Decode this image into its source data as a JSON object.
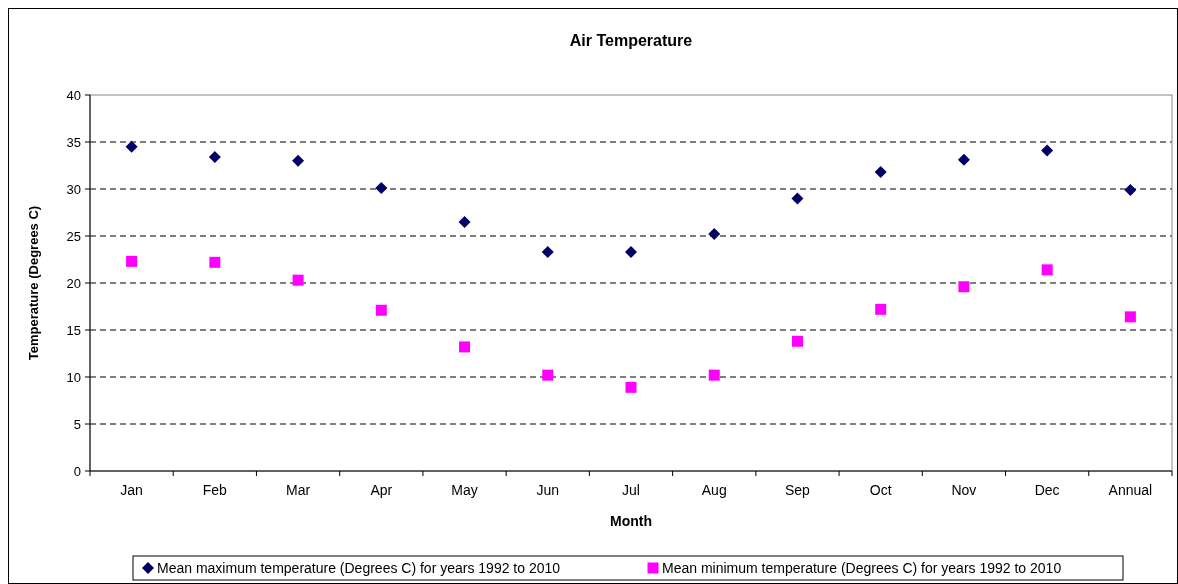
{
  "chart_data": {
    "type": "scatter",
    "title": "Air Temperature",
    "xlabel": "Month",
    "ylabel": "Temperature (Degrees C)",
    "categories": [
      "Jan",
      "Feb",
      "Mar",
      "Apr",
      "May",
      "Jun",
      "Jul",
      "Aug",
      "Sep",
      "Oct",
      "Nov",
      "Dec",
      "Annual"
    ],
    "series": [
      {
        "name": "Mean maximum temperature (Degrees C) for years 1992 to 2010",
        "color": "#000066",
        "marker": "diamond",
        "values": [
          34.5,
          33.4,
          33.0,
          30.1,
          26.5,
          23.3,
          23.3,
          25.2,
          29.0,
          31.8,
          33.1,
          34.1,
          29.9
        ]
      },
      {
        "name": "Mean minimum temperature (Degrees C) for years 1992 to 2010",
        "color": "#ff00ff",
        "marker": "square",
        "values": [
          22.3,
          22.2,
          20.3,
          17.1,
          13.2,
          10.2,
          8.9,
          10.2,
          13.8,
          17.2,
          19.6,
          21.4,
          16.4
        ]
      }
    ],
    "ylim": [
      0,
      40
    ],
    "yticks": [
      0,
      5,
      10,
      15,
      20,
      25,
      30,
      35,
      40
    ],
    "grid": "y",
    "legend": "bottom"
  }
}
